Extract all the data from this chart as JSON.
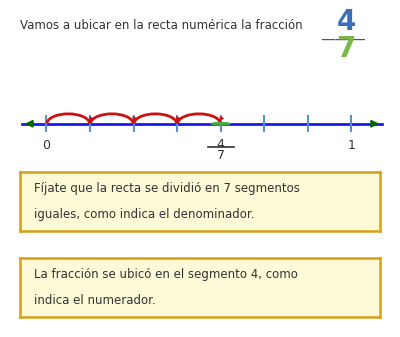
{
  "bg_color": "#ffffff",
  "title_text": "Vamos a ubicar en la recta nuérica la fracción",
  "title_text2": "Vamos a ubicar en la recta numérica la fracción",
  "fraction_num": "4",
  "fraction_den": "7",
  "fraction_num_color": "#3a6fba",
  "fraction_den_color": "#7ab648",
  "line_color": "#1a1aee",
  "arrow_color_left": "#006600",
  "arrow_color_right": "#006600",
  "tick_color": "#5b8fd4",
  "arc_color": "#cc1111",
  "point_fill_color": "#c8f0c8",
  "point_edge_color": "#44aa44",
  "text_color": "#333333",
  "box_bg_color": "#fef9d7",
  "box_edge_color": "#d4a017",
  "box1_line1": "Fíjate que la recta se dividió en 7 segmentos",
  "box1_line2": "iguales, como indica el denominador.",
  "box2_line1": "La fracción se ubicó en el segmento 4, como",
  "box2_line2": "indica el numerador.",
  "numerator": 4,
  "denominator": 7
}
